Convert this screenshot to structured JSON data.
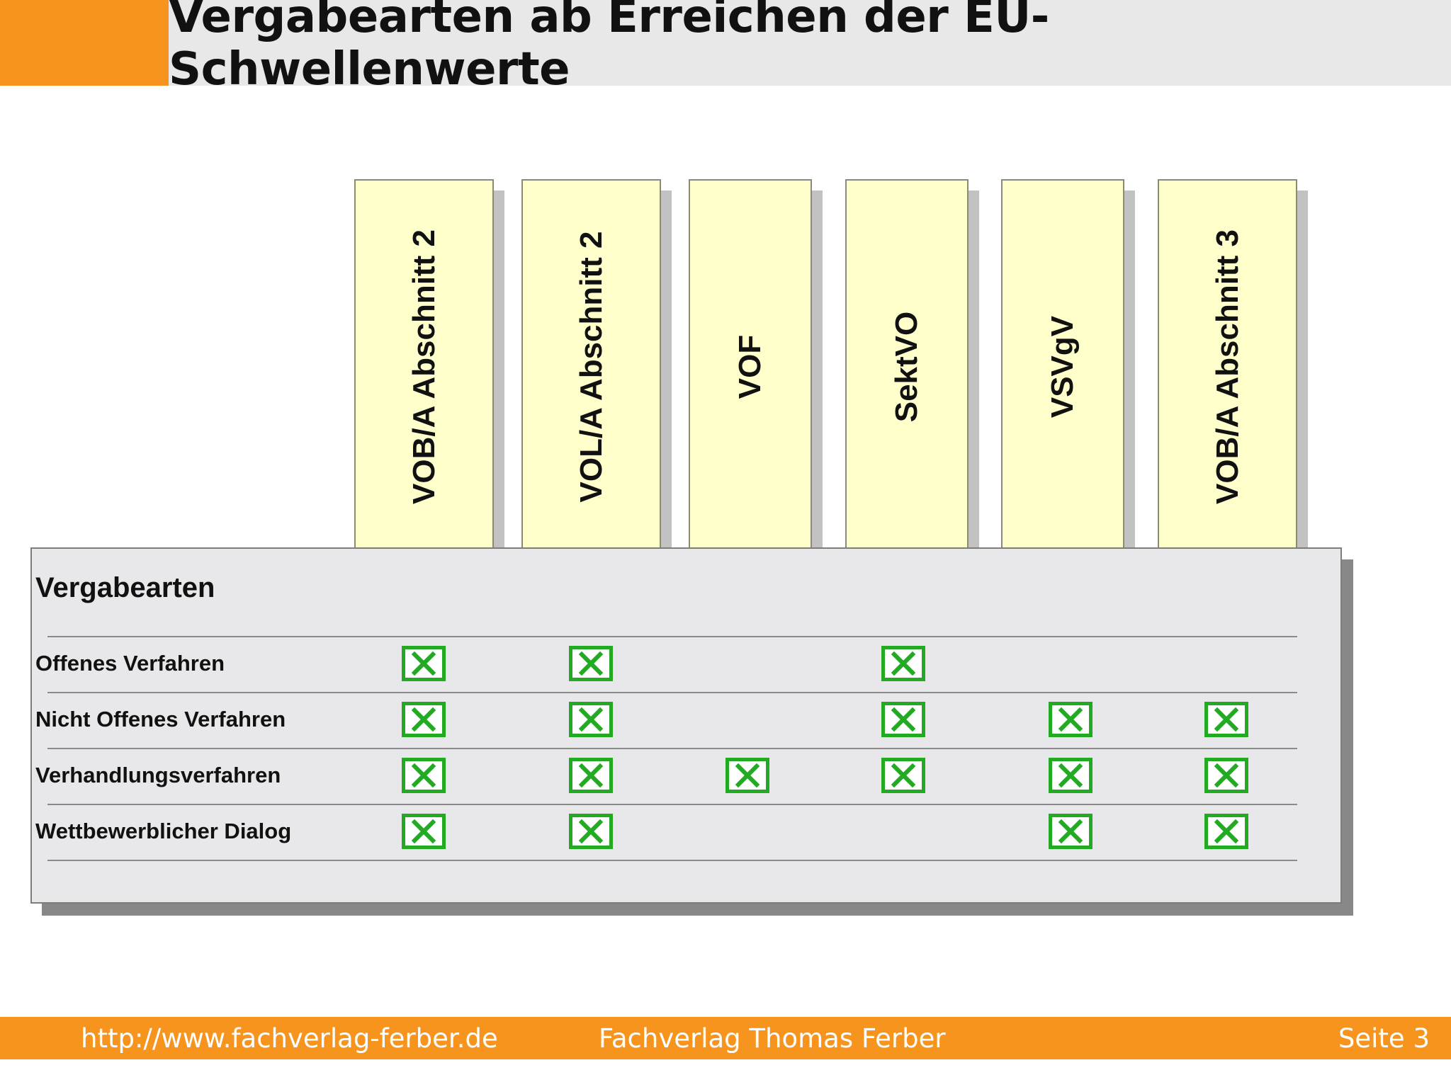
{
  "header": {
    "title": "Vergabearten ab Erreichen der EU-Schwellenwerte"
  },
  "columns": [
    {
      "label": "VOB/A  Abschnitt 2"
    },
    {
      "label": "VOL/A  Abschnitt 2"
    },
    {
      "label": "VOF"
    },
    {
      "label": "SektVO"
    },
    {
      "label": "VSVgV"
    },
    {
      "label": "VOB/A  Abschnitt 3"
    }
  ],
  "panel": {
    "title": "Vergabearten",
    "rows": [
      {
        "label": "Offenes Verfahren",
        "checks": [
          true,
          true,
          false,
          true,
          false,
          false
        ]
      },
      {
        "label": "Nicht Offenes Verfahren",
        "checks": [
          true,
          true,
          false,
          true,
          true,
          true
        ]
      },
      {
        "label": "Verhandlungsverfahren",
        "checks": [
          true,
          true,
          true,
          true,
          true,
          true
        ]
      },
      {
        "label": "Wettbewerblicher Dialog",
        "checks": [
          true,
          true,
          false,
          false,
          true,
          true
        ]
      }
    ]
  },
  "colors": {
    "accent": "#f7941d",
    "column_fill": "#ffffcc",
    "check": "#22aa22",
    "panel": "#e8e8ea"
  },
  "icons": {
    "checked_box": "checked-box-icon"
  },
  "footer": {
    "url": "http://www.fachverlag-ferber.de",
    "publisher": "Fachverlag Thomas Ferber",
    "page": "Seite 3"
  }
}
